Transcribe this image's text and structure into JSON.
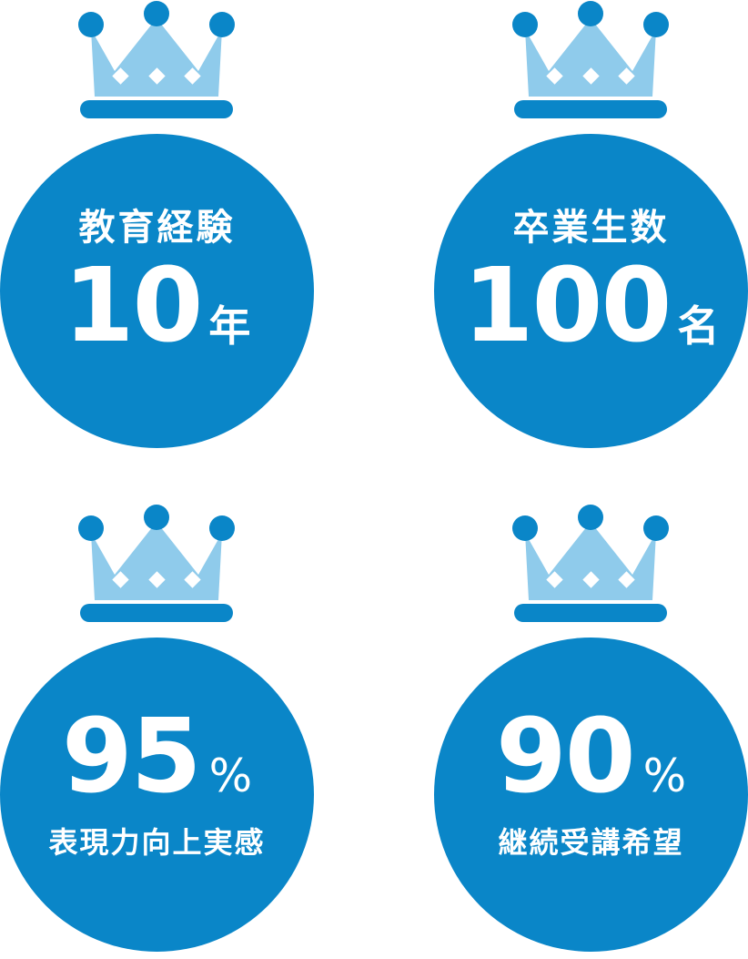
{
  "colors": {
    "medal": "#0a86c8",
    "crown_light": "#8fcbeb",
    "crown_dark": "#0a86c8",
    "text": "#ffffff"
  },
  "badges": [
    {
      "label": "教育経験",
      "value": "10",
      "unit": "年",
      "icon": "crown-icon"
    },
    {
      "label": "卒業生数",
      "value": "100",
      "unit": "名",
      "icon": "crown-icon"
    },
    {
      "value": "95",
      "unit": "%",
      "label": "表現力向上実感",
      "icon": "crown-icon"
    },
    {
      "value": "90",
      "unit": "%",
      "label": "継続受講希望",
      "icon": "crown-icon"
    }
  ]
}
